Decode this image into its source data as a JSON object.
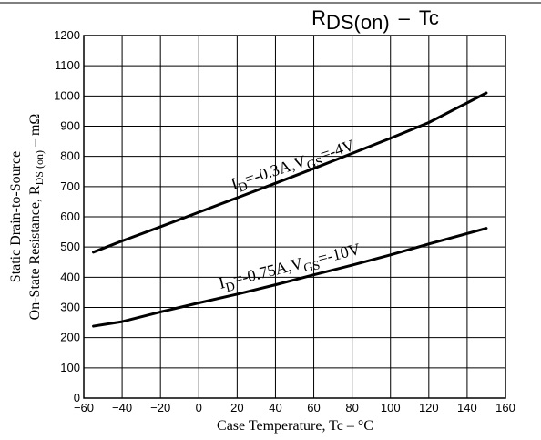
{
  "chart_data": {
    "type": "line",
    "title": {
      "main": "R",
      "sub": "DS(on)",
      "dash": "–",
      "suffix": "Tc"
    },
    "xlabel": "Case Temperature, Tc  –  °C",
    "ylabel": {
      "line1": "Static Drain-to-Source",
      "line2_prefix": "On-State Resistance, R",
      "line2_sub": "DS (on)",
      "line2_suffix": " –  mΩ"
    },
    "xlim": [
      -60,
      160
    ],
    "ylim": [
      0,
      1200
    ],
    "xticks": [
      -60,
      -40,
      -20,
      0,
      20,
      40,
      60,
      80,
      100,
      120,
      140,
      160
    ],
    "yticks": [
      0,
      100,
      200,
      300,
      400,
      500,
      600,
      700,
      800,
      900,
      1000,
      1100,
      1200
    ],
    "grid": true,
    "series": [
      {
        "annotation": {
          "prefix": "I",
          "sub1": "D",
          "mid": "=-0.3A,V",
          "sub2": "GS",
          "suffix": "=-4V"
        },
        "x": [
          -55,
          -40,
          -20,
          0,
          20,
          40,
          60,
          80,
          100,
          120,
          150
        ],
        "y": [
          483,
          520,
          567,
          615,
          663,
          711,
          760,
          810,
          860,
          912,
          1010
        ]
      },
      {
        "annotation": {
          "prefix": "I",
          "sub1": "D",
          "mid": "=-0.75A,V",
          "sub2": "GS",
          "suffix": "=-10V"
        },
        "x": [
          -55,
          -40,
          -20,
          0,
          20,
          40,
          60,
          80,
          100,
          120,
          150
        ],
        "y": [
          238,
          253,
          285,
          315,
          344,
          375,
          408,
          440,
          474,
          510,
          562
        ]
      }
    ]
  }
}
